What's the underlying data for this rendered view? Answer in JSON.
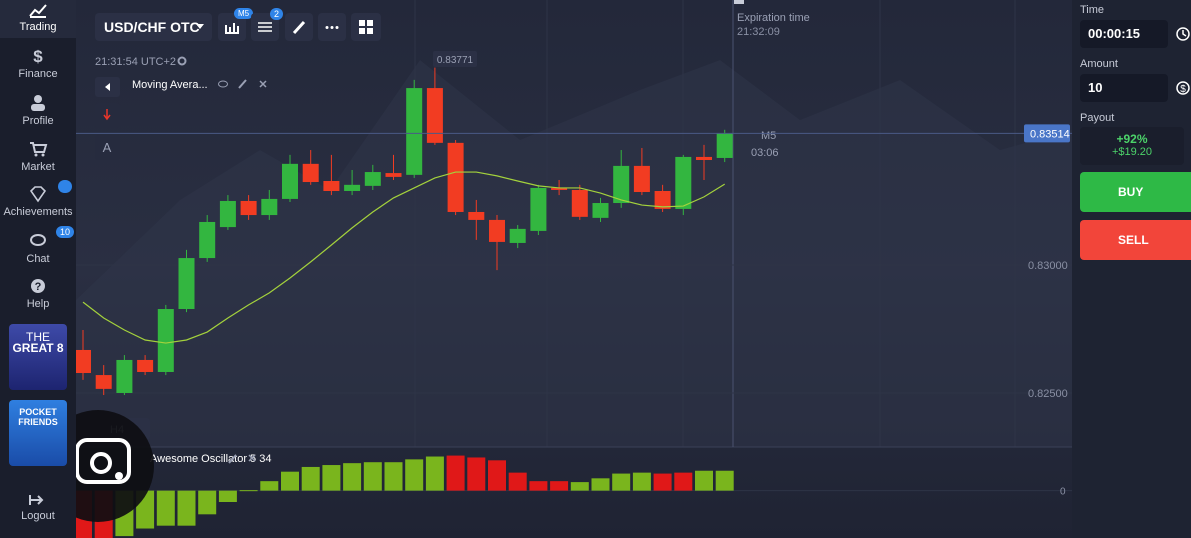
{
  "sidebar": {
    "items": [
      {
        "label": "Trading"
      },
      {
        "label": "Finance"
      },
      {
        "label": "Profile"
      },
      {
        "label": "Market"
      },
      {
        "label": "Achievements"
      },
      {
        "label": "Chat"
      },
      {
        "label": "Help"
      }
    ],
    "chat_badge": "10",
    "promos": [
      {
        "line1": "THE",
        "line2": "GREAT 8"
      },
      {
        "line1": "POCKET",
        "line2": "FRIENDS"
      }
    ],
    "logout": "Logout"
  },
  "toolbar": {
    "pair": "USD/CHF OTC",
    "timeframe_badge": "M5",
    "indicators_badge": "2"
  },
  "chart": {
    "type": "candlestick",
    "clock": "21:31:54 UTC+2",
    "indicator": "Moving Avera...",
    "drawing_tool": "A",
    "high_label": "0.83771",
    "expiration_label": "Expiration time",
    "expiration_time": "21:32:09",
    "timeframe": "M5",
    "countdown": "03:06",
    "zoom": "H4",
    "current_price": {
      "value": 0.83514,
      "label": "0.83514"
    },
    "ylim": [
      0.82289,
      0.84035
    ],
    "yticks": [
      {
        "value": 0.83,
        "label": "0.83000"
      },
      {
        "value": 0.825,
        "label": "0.82500"
      }
    ],
    "colors": {
      "up": "#33b640",
      "down": "#f23c22"
    },
    "candles": {
      "open": [
        0.82668,
        0.8257,
        0.825,
        0.82629,
        0.82582,
        0.82828,
        0.83027,
        0.83148,
        0.8325,
        0.83195,
        0.83258,
        0.83395,
        0.83328,
        0.83289,
        0.83309,
        0.83359,
        0.83352,
        0.83691,
        0.83477,
        0.83207,
        0.83176,
        0.83086,
        0.83133,
        0.83301,
        0.83293,
        0.83184,
        0.83242,
        0.83387,
        0.83289,
        0.83219,
        0.83422,
        0.83418
      ],
      "high": [
        0.82746,
        0.82609,
        0.82648,
        0.82648,
        0.82844,
        0.83059,
        0.83195,
        0.83273,
        0.83273,
        0.83293,
        0.8343,
        0.83449,
        0.8343,
        0.83371,
        0.83391,
        0.8343,
        0.83723,
        0.83771,
        0.83488,
        0.83254,
        0.83195,
        0.83156,
        0.83313,
        0.83332,
        0.83313,
        0.83262,
        0.83449,
        0.83457,
        0.83313,
        0.8343,
        0.83469,
        0.83528
      ],
      "low": [
        0.82551,
        0.82492,
        0.82492,
        0.8257,
        0.8257,
        0.82816,
        0.83012,
        0.83137,
        0.83176,
        0.83176,
        0.83246,
        0.83313,
        0.83273,
        0.83273,
        0.83293,
        0.83332,
        0.8334,
        0.83469,
        0.83195,
        0.83098,
        0.8298,
        0.83066,
        0.83117,
        0.83273,
        0.83176,
        0.83168,
        0.83223,
        0.83273,
        0.83207,
        0.83195,
        0.83332,
        0.83402
      ],
      "close": [
        0.82578,
        0.82516,
        0.82629,
        0.82582,
        0.82828,
        0.83027,
        0.83168,
        0.8325,
        0.83195,
        0.83258,
        0.83395,
        0.83324,
        0.83289,
        0.83313,
        0.83363,
        0.83344,
        0.83691,
        0.83477,
        0.83207,
        0.83176,
        0.8309,
        0.83141,
        0.83301,
        0.83293,
        0.83188,
        0.83242,
        0.83387,
        0.83285,
        0.83219,
        0.83422,
        0.8341,
        0.83514
      ]
    },
    "moving_average": {
      "color": "#a4d23c",
      "values": [
        0.82855,
        0.82793,
        0.82746,
        0.82707,
        0.82695,
        0.82707,
        0.82738,
        0.82793,
        0.82844,
        0.82891,
        0.82949,
        0.83012,
        0.83078,
        0.83145,
        0.83207,
        0.83262,
        0.83301,
        0.8334,
        0.83363,
        0.83363,
        0.83348,
        0.83328,
        0.83309,
        0.83301,
        0.83301,
        0.83281,
        0.83254,
        0.83234,
        0.83227,
        0.8323,
        0.83266,
        0.83316
      ]
    },
    "oscillator": {
      "name": "Awesome Oscillator 5 34",
      "ylim": [
        -50,
        45
      ],
      "yticks": [
        0
      ],
      "values": [
        -50,
        -50,
        -48,
        -40,
        -37,
        -37,
        -25,
        -12,
        0.5,
        10,
        20,
        25,
        27,
        29,
        30,
        30,
        33,
        36,
        37,
        35,
        32,
        19,
        10,
        10,
        9,
        13,
        18,
        19,
        18,
        19,
        21,
        21
      ],
      "bar_colors": [
        "#e01818",
        "#e01818",
        "#7ab51d",
        "#7ab51d",
        "#7ab51d",
        "#7ab51d",
        "#7ab51d",
        "#7ab51d",
        "#7ab51d",
        "#7ab51d",
        "#7ab51d",
        "#7ab51d",
        "#7ab51d",
        "#7ab51d",
        "#7ab51d",
        "#7ab51d",
        "#7ab51d",
        "#7ab51d",
        "#e01818",
        "#e01818",
        "#e01818",
        "#e01818",
        "#e01818",
        "#e01818",
        "#7ab51d",
        "#7ab51d",
        "#7ab51d",
        "#7ab51d",
        "#e01818",
        "#e01818",
        "#7ab51d",
        "#7ab51d"
      ]
    }
  },
  "trade_panel": {
    "time_label": "Time",
    "time_value": "00:00:15",
    "amount_label": "Amount",
    "amount_value": "10",
    "payout_label": "Payout",
    "payout_percent": "+92%",
    "payout_amount": "+$19.20",
    "buy": "BUY",
    "sell": "SELL"
  }
}
